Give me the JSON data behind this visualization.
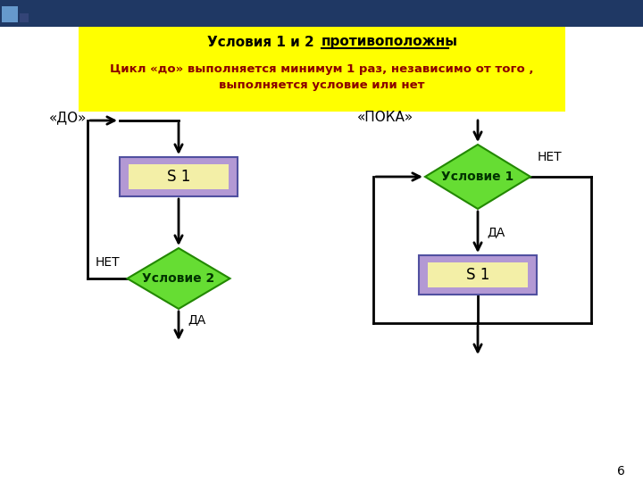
{
  "title_box_color": "#FFFF00",
  "title_line1": "Условия 1 и 2 противоположны",
  "title_line1_plain": "Условия 1 и 2 ",
  "title_line1_underlined": "противоположны",
  "title_line2": "Цикл «до» выполняется минимум 1 раз, независимо от того ,",
  "title_line3": "выполняется условие или нет",
  "title_text_color": "#8B0000",
  "bg_color": "#FFFFFF",
  "slide_bg": "#FFFFFF",
  "do_label": "«ДО»",
  "poka_label": "«ПОКА»",
  "s1_text": "S 1",
  "condition1_text": "Условие 1",
  "condition2_text": "Условие 2",
  "da_text": "ДА",
  "net_text": "НЕТ",
  "box_fill_outer": "#B399D4",
  "box_fill_inner": "#FFFFA0",
  "diamond_fill": "#66DD33",
  "diamond_edge": "#228800",
  "arrow_color": "#000000",
  "line_color": "#000000",
  "page_number": "6",
  "header_bg": "#1F3864"
}
